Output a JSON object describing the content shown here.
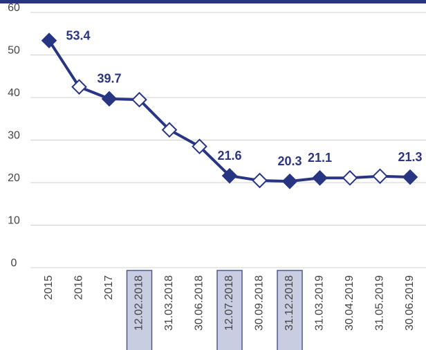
{
  "chart_data": {
    "type": "line",
    "categories": [
      "2015",
      "2016",
      "2017",
      "12.02.2018",
      "31.03.2018",
      "30.06.2018",
      "12.07.2018",
      "30.09.2018",
      "31.12.2018",
      "31.03.2019",
      "30.04.2019",
      "31.05.2019",
      "30.06.2019"
    ],
    "values": [
      53.4,
      42.5,
      39.7,
      39.5,
      32.4,
      28.5,
      21.6,
      20.5,
      20.3,
      21.1,
      21.1,
      21.5,
      21.3
    ],
    "color": "#283583",
    "filled_markers": [
      true,
      false,
      true,
      false,
      false,
      false,
      true,
      false,
      true,
      true,
      false,
      false,
      true
    ],
    "labeled_points": [
      true,
      false,
      true,
      false,
      false,
      false,
      true,
      false,
      true,
      true,
      false,
      false,
      true
    ],
    "highlighted_categories": [
      false,
      false,
      false,
      true,
      false,
      false,
      true,
      false,
      true,
      false,
      false,
      false,
      false
    ],
    "ylim": [
      0,
      60
    ],
    "yticks": [
      0,
      10,
      20,
      30,
      40,
      50,
      60
    ],
    "grid": true
  }
}
